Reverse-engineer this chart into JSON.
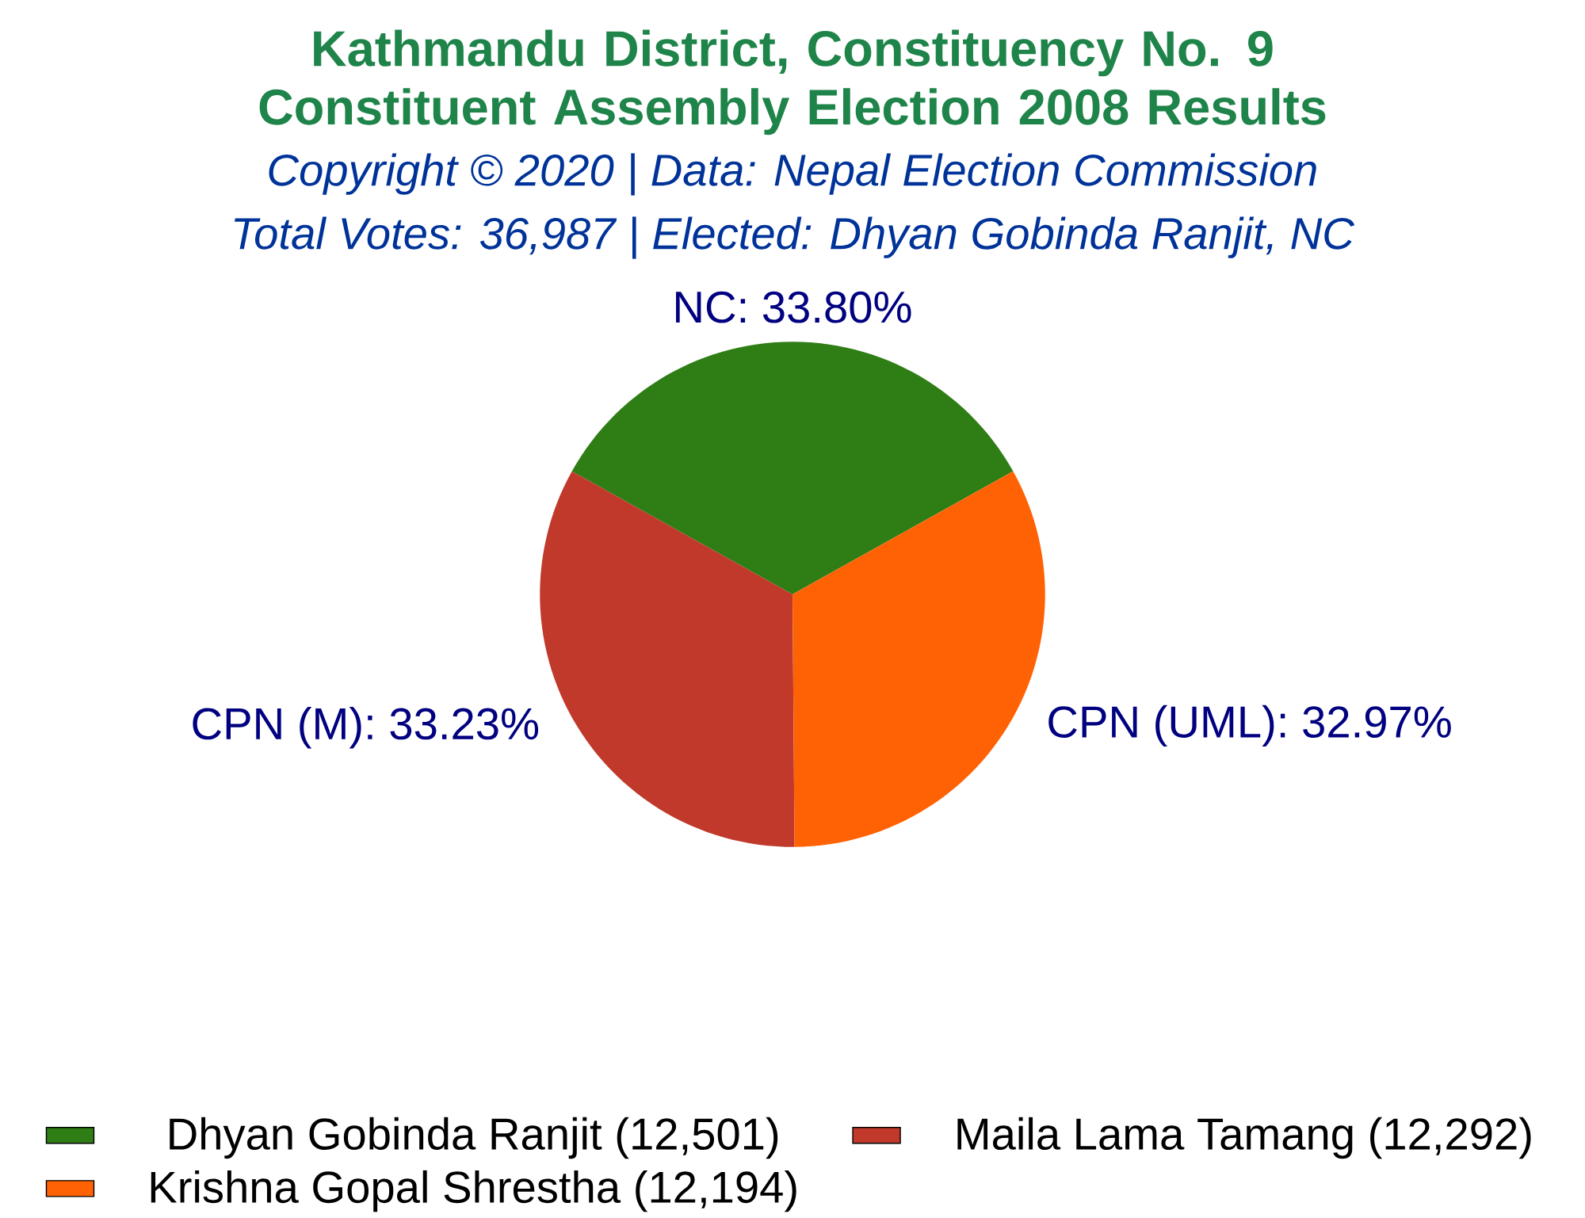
{
  "chart_data": {
    "type": "pie",
    "title": "Kathmandu District, Constituency No. 9 Constituent Assembly Election 2008 Results",
    "subtitle": "Copyright © 2020 | Data: Nepal Election Commission",
    "annotations": [
      "Total Votes: 36,987 | Elected: Dhyan Gobinda Ranjit, NC"
    ],
    "categories": [
      "Dhyan Gobinda Ranjit (12,501)",
      "Maila Lama Tamang (12,292)",
      "Krishna Gopal Shrestha (12,194)"
    ],
    "values": [
      33.8,
      33.23,
      32.97
    ],
    "colors": [
      "#2e7d15",
      "#c0392b",
      "#ff6205"
    ],
    "value_labels": [
      "NC: 33.80%",
      "CPN (M): 33.23%",
      "CPN (UML): 32.97%"
    ],
    "legend": "bottom"
  }
}
